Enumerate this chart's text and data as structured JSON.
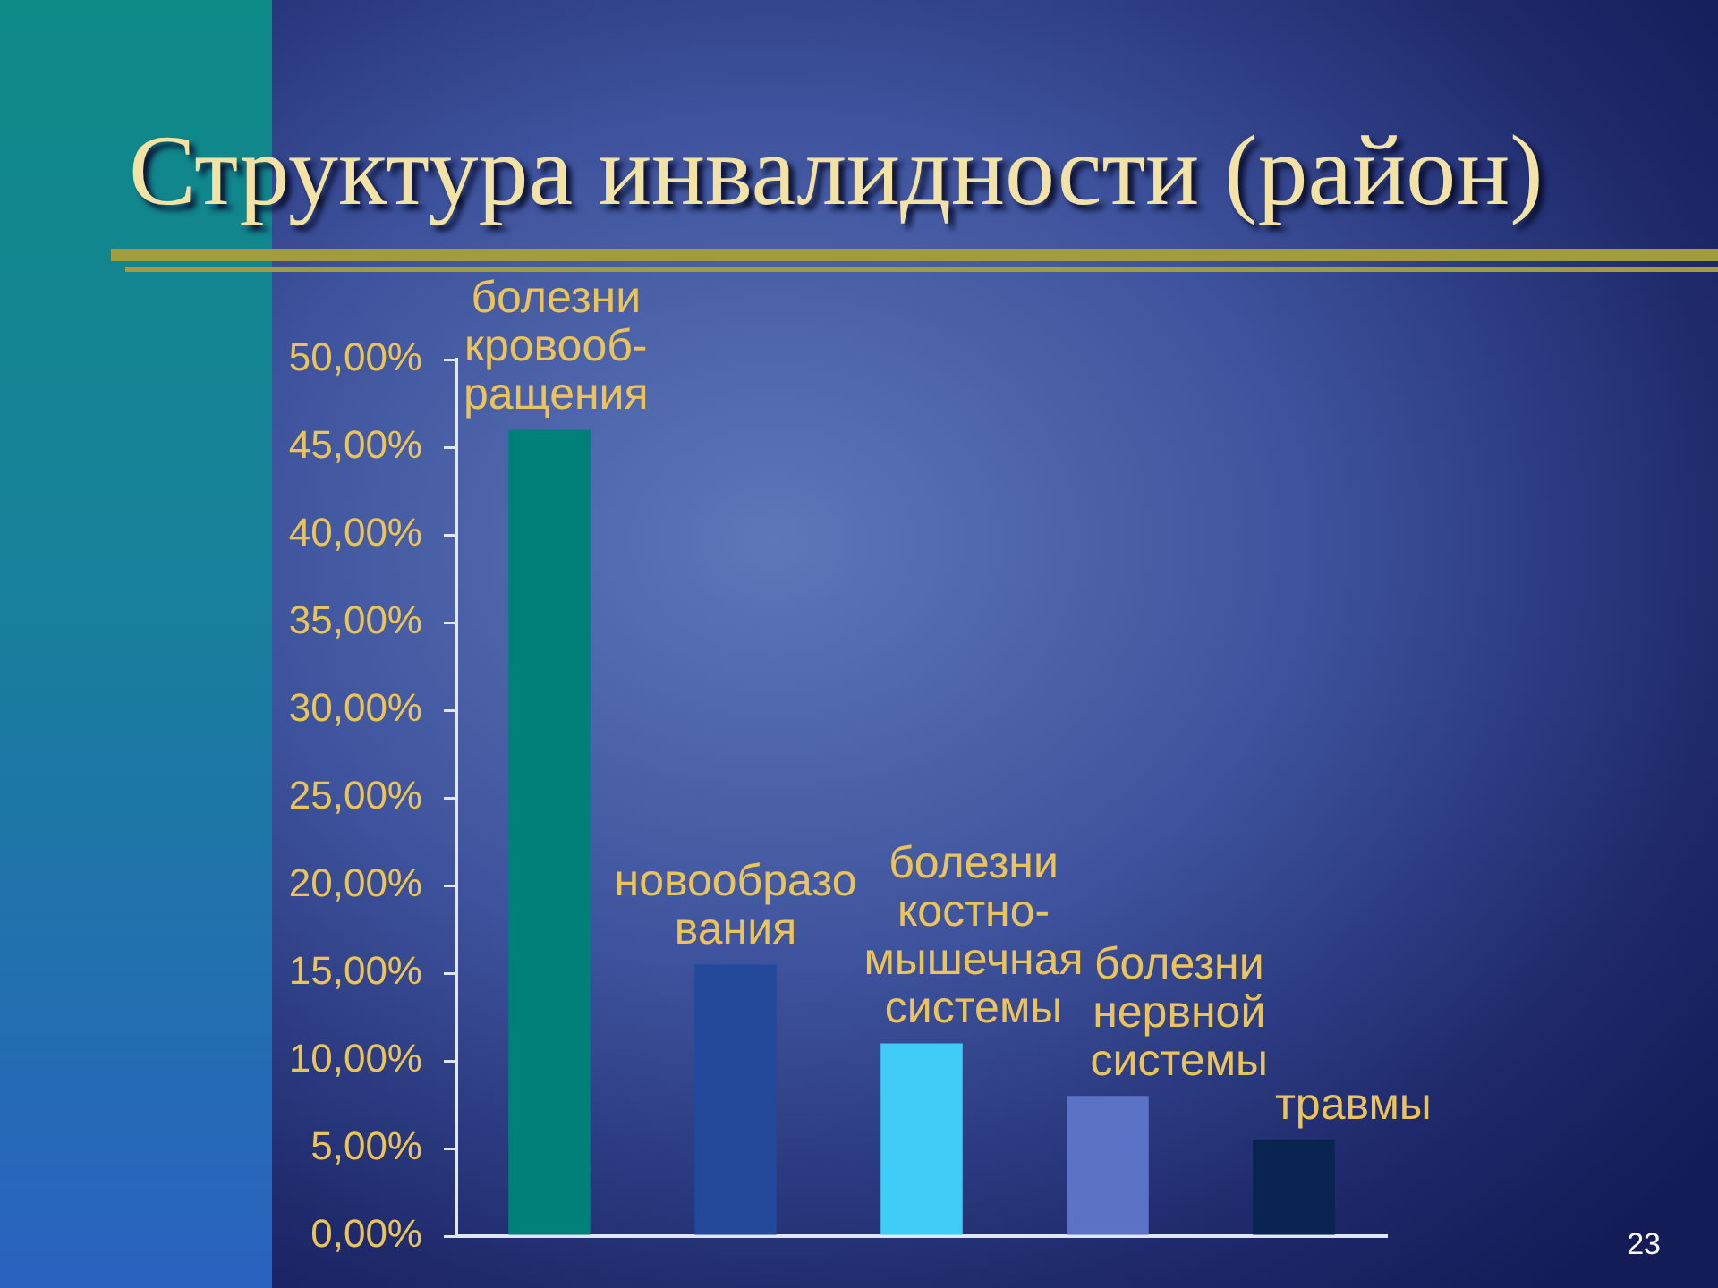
{
  "chart_data": {
    "type": "bar",
    "title": "Структура инвалидности (район)",
    "categories": [
      "болезни\nкровооб-\nращения",
      "новообразо\nвания",
      "болезни\nкостно-\nмышечная\nсистемы",
      "болезни\nнервной\nсистемы",
      "травмы"
    ],
    "values": [
      46,
      15.5,
      11,
      8,
      5.5
    ],
    "colors": [
      "#008078",
      "#24489a",
      "#40ccf6",
      "#5c72c6",
      "#0a2452"
    ],
    "ylim": [
      0,
      50
    ],
    "yticks": [
      {
        "value": 0,
        "label": "0,00%"
      },
      {
        "value": 5,
        "label": "5,00%"
      },
      {
        "value": 10,
        "label": "10,00%"
      },
      {
        "value": 15,
        "label": "15,00%"
      },
      {
        "value": 20,
        "label": "20,00%"
      },
      {
        "value": 25,
        "label": "25,00%"
      },
      {
        "value": 30,
        "label": "30,00%"
      },
      {
        "value": 35,
        "label": "35,00%"
      },
      {
        "value": 40,
        "label": "40,00%"
      },
      {
        "value": 45,
        "label": "45,00%"
      },
      {
        "value": 50,
        "label": "50,00%"
      }
    ],
    "annotations": [
      "23"
    ]
  }
}
